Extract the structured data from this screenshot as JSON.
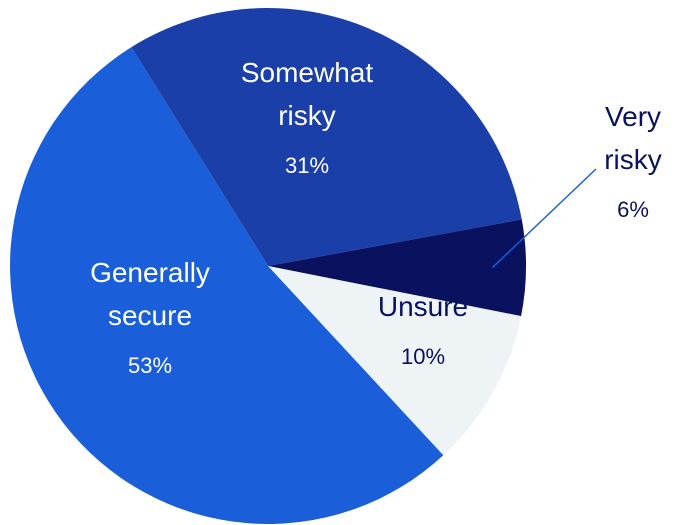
{
  "chart_data": {
    "type": "pie",
    "title": "",
    "slices": [
      {
        "label_lines": [
          "Generally",
          "secure"
        ],
        "value": 53,
        "value_label": "53%",
        "color": "#1a5fd9",
        "text_color": "#ffffff"
      },
      {
        "label_lines": [
          "Somewhat",
          "risky"
        ],
        "value": 31,
        "value_label": "31%",
        "color": "#1b3fa8",
        "text_color": "#ffffff"
      },
      {
        "label_lines": [
          "Very",
          "risky"
        ],
        "value": 6,
        "value_label": "6%",
        "color": "#0a1260",
        "text_color": "#0a1260"
      },
      {
        "label_lines": [
          "Unsure"
        ],
        "value": 10,
        "value_label": "10%",
        "color": "#eef3f5",
        "text_color": "#0a1260"
      }
    ],
    "legend": "none",
    "slice_border_color": "#ffffff"
  }
}
